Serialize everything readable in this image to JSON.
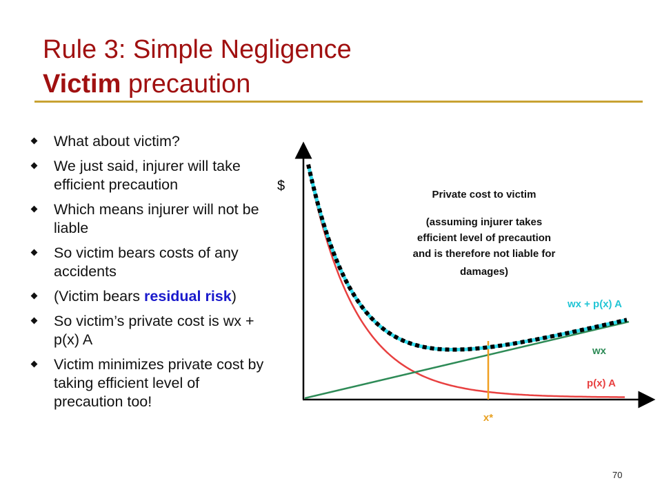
{
  "title": {
    "line1": "Rule 3: Simple Negligence",
    "line2_bold": "Victim",
    "line2_rest": " precaution"
  },
  "bullets": [
    {
      "text": "What about victim?"
    },
    {
      "text": "We just said, injurer will take efficient precaution"
    },
    {
      "text": "Which means injurer will not be liable"
    },
    {
      "text": "So victim bears costs of any accidents"
    },
    {
      "pre": "(Victim bears ",
      "highlight": "residual risk",
      "post": ")"
    },
    {
      "text": "So victim’s private cost is wx + p(x) A"
    },
    {
      "text": "Victim minimizes private cost by taking efficient level of precaution too!"
    }
  ],
  "diagram": {
    "y_axis_label": "$",
    "annotation_title": "Private cost to victim",
    "annotation_lines": [
      "(assuming injurer takes",
      "efficient level of precaution",
      "and is therefore not liable for",
      "damages)"
    ],
    "labels": {
      "total": "wx + p(x) A",
      "linear": "wx",
      "risk": "p(x) A",
      "optimum": "x*"
    },
    "colors": {
      "total_dashes": "#000000",
      "total_line": "#33ddee",
      "linear": "#2e8b57",
      "risk": "#e84040",
      "optimum": "#f0a020",
      "total_label": "#22c5d5",
      "linear_label": "#2e8b57",
      "risk_label": "#e84040",
      "optimum_label": "#e8a020"
    }
  },
  "page_number": "70"
}
